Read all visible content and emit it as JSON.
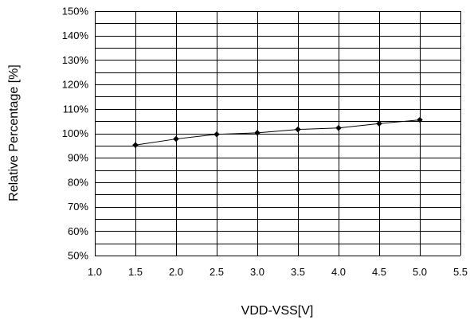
{
  "chart_data": {
    "type": "line",
    "xlabel": "VDD-VSS[V]",
    "ylabel": "Relative Percentage [%]",
    "xlim": [
      1.0,
      5.5
    ],
    "ylim": [
      50,
      150
    ],
    "x_ticks": [
      "1.0",
      "1.5",
      "2.0",
      "2.5",
      "3.0",
      "3.5",
      "4.0",
      "4.5",
      "5.0",
      "5.5"
    ],
    "y_ticks": [
      "50%",
      "60%",
      "70%",
      "80%",
      "90%",
      "100%",
      "110%",
      "120%",
      "130%",
      "140%",
      "150%"
    ],
    "grid": true,
    "x": [
      1.5,
      2.0,
      2.5,
      3.0,
      3.5,
      4.0,
      4.5,
      5.0
    ],
    "series": [
      {
        "values": [
          95.2,
          97.7,
          99.6,
          100.2,
          101.6,
          102.2,
          104.0,
          105.5
        ]
      }
    ]
  }
}
